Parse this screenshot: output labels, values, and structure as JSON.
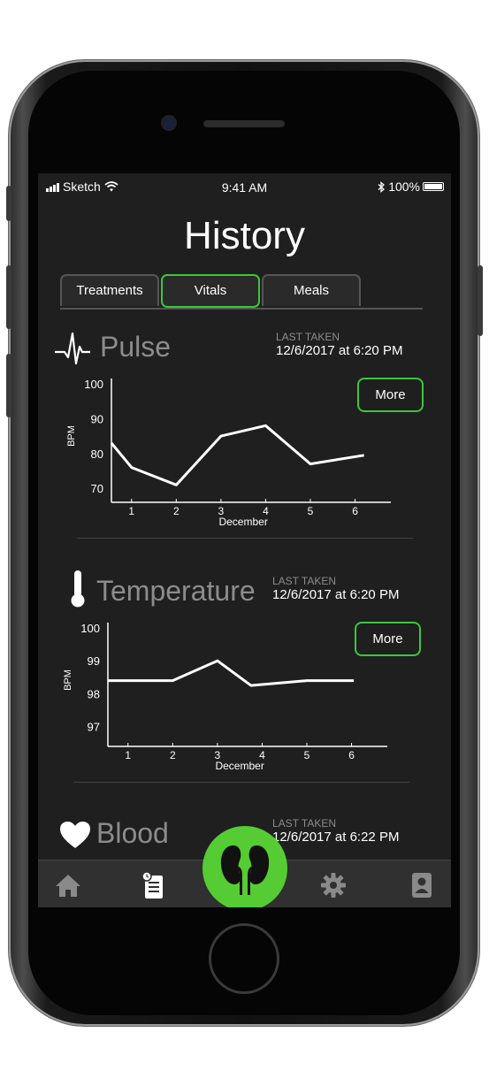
{
  "status_bar": {
    "carrier": "Sketch",
    "time": "9:41 AM",
    "battery": "100%"
  },
  "page_title": "History",
  "tabs": [
    {
      "label": "Treatments",
      "active": false
    },
    {
      "label": "Vitals",
      "active": true
    },
    {
      "label": "Meals",
      "active": false
    }
  ],
  "sections": {
    "pulse": {
      "title": "Pulse",
      "icon": "heartbeat-icon",
      "last_taken_label": "LAST TAKEN",
      "last_taken_value": "12/6/2017 at 6:20 PM",
      "more_label": "More"
    },
    "temperature": {
      "title": "Temperature",
      "icon": "thermometer-icon",
      "last_taken_label": "LAST TAKEN",
      "last_taken_value": "12/6/2017 at 6:20 PM",
      "more_label": "More"
    },
    "blood": {
      "title": "Blood",
      "icon": "heart-icon",
      "last_taken_label": "LAST TAKEN",
      "last_taken_value": "12/6/2017 at 6:22 PM"
    }
  },
  "chart_data": [
    {
      "type": "line",
      "x": [
        0.55,
        1,
        2,
        3,
        4,
        5,
        6.2
      ],
      "values": [
        83,
        76,
        71,
        85,
        88,
        77,
        79.5
      ],
      "xticks": [
        "1",
        "2",
        "3",
        "4",
        "5",
        "6"
      ],
      "yticks": [
        "70",
        "80",
        "90",
        "100"
      ],
      "xlabel": "December",
      "ylabel": "BPM",
      "ylim": [
        66,
        100
      ],
      "xlim": [
        0.55,
        6.8
      ]
    },
    {
      "type": "line",
      "x": [
        0.55,
        2,
        3,
        3.75,
        5,
        6.05
      ],
      "values": [
        98.4,
        98.4,
        99.0,
        98.25,
        98.4,
        98.4
      ],
      "xticks": [
        "1",
        "2",
        "3",
        "4",
        "5",
        "6"
      ],
      "yticks": [
        "97",
        "98",
        "99",
        "100"
      ],
      "xlabel": "December",
      "ylabel": "BPM",
      "ylim": [
        96.4,
        100
      ],
      "xlim": [
        0.55,
        6.8
      ]
    }
  ],
  "tab_bar": [
    {
      "name": "home-icon",
      "color": "#8a8a8a"
    },
    {
      "name": "history-icon",
      "color": "#ffffff"
    },
    {
      "name": "kidney-icon",
      "color": "#55cc33"
    },
    {
      "name": "gear-icon",
      "color": "#8a8a8a"
    },
    {
      "name": "contacts-icon",
      "color": "#8a8a8a"
    }
  ],
  "colors": {
    "accent": "#3cc63c",
    "fab": "#55cc33",
    "background": "#1f1f1f"
  }
}
